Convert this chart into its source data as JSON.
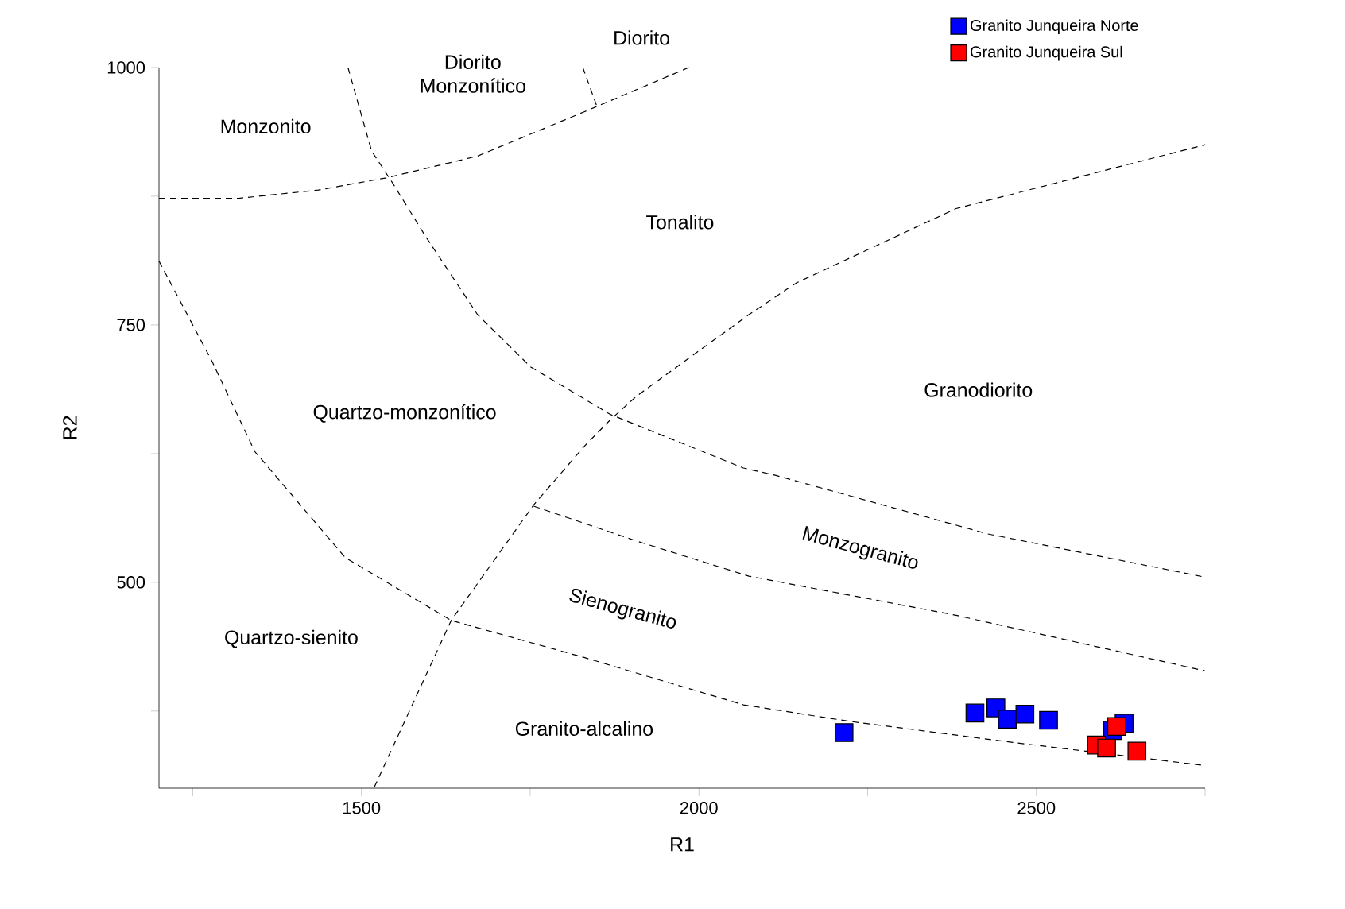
{
  "chart_data": {
    "type": "scatter",
    "xlabel": "R1",
    "ylabel": "R2",
    "xlim": [
      1200,
      2750
    ],
    "ylim": [
      300,
      1000
    ],
    "xticks": [
      {
        "value": 1250,
        "label": null
      },
      1500,
      {
        "value": 1750,
        "label": null
      },
      2000,
      {
        "value": 2250,
        "label": null
      },
      2500,
      {
        "value": 2750,
        "label": null
      }
    ],
    "yticks": [
      {
        "value": 375,
        "label": null
      },
      500,
      {
        "value": 625,
        "label": null
      },
      750,
      {
        "value": 875,
        "label": null
      },
      1000
    ],
    "marker": "square",
    "legend": "top right",
    "annotations": [
      "Monzonito",
      "Diorito Monzonítico",
      "Diorito",
      "Tonalito",
      "Granodiorito",
      "Quartzo-monzonítico",
      "Monzogranito",
      "Sienogranito",
      "Quartzo-sienito",
      "Granito-alcalino"
    ],
    "series": [
      {
        "name": "Granito Junqueira Norte",
        "color": "#0000ff",
        "x": [
          2215,
          2409,
          2440,
          2457,
          2483,
          2518,
          2613,
          2630
        ],
        "values": [
          354,
          373,
          378,
          367,
          372,
          366,
          356,
          363
        ]
      },
      {
        "name": "Granito Junqueira Sul",
        "color": "#ff0000",
        "x": [
          2619,
          2589,
          2604,
          2649
        ],
        "values": [
          360,
          342,
          339,
          336
        ]
      },
      {
        "type": "line",
        "marker": "none",
        "line_style": "dashed",
        "color": "#000000",
        "x": [
          1200,
          1318,
          1436,
          1538,
          1672,
          1830,
          1985
        ],
        "values": [
          873,
          873,
          881,
          893,
          914,
          957,
          1000
        ]
      },
      {
        "type": "line",
        "marker": "none",
        "line_style": "dashed",
        "color": "#000000",
        "x": [
          1480,
          1515,
          1546,
          1594,
          1672,
          1751,
          1869,
          2066,
          2113,
          2428,
          2750
        ],
        "values": [
          1000,
          919,
          888,
          837,
          760,
          709,
          663,
          611,
          604,
          547,
          505
        ]
      },
      {
        "type": "line",
        "marker": "none",
        "line_style": "dashed",
        "color": "#000000",
        "x": [
          1828,
          1849
        ],
        "values": [
          1000,
          962
        ]
      },
      {
        "type": "line",
        "marker": "none",
        "line_style": "dashed",
        "color": "#000000",
        "x": [
          1200,
          1279,
          1342,
          1476,
          1633,
          1830,
          2066,
          2223,
          2459,
          2750
        ],
        "values": [
          812,
          714,
          627,
          524,
          463,
          427,
          381,
          365,
          345,
          322
        ]
      },
      {
        "type": "line",
        "marker": "none",
        "line_style": "dashed",
        "color": "#000000",
        "x": [
          1755,
          1908,
          2074,
          2381,
          2750
        ],
        "values": [
          574,
          540,
          506,
          468,
          414
        ]
      },
      {
        "type": "line",
        "marker": "none",
        "line_style": "dashed",
        "color": "#000000",
        "x": [
          1519,
          1633,
          1755,
          1830,
          1869,
          1908,
          2074,
          2145,
          2381,
          2750
        ],
        "values": [
          301,
          463,
          575,
          632,
          658,
          681,
          760,
          791,
          863,
          925
        ]
      }
    ]
  }
}
